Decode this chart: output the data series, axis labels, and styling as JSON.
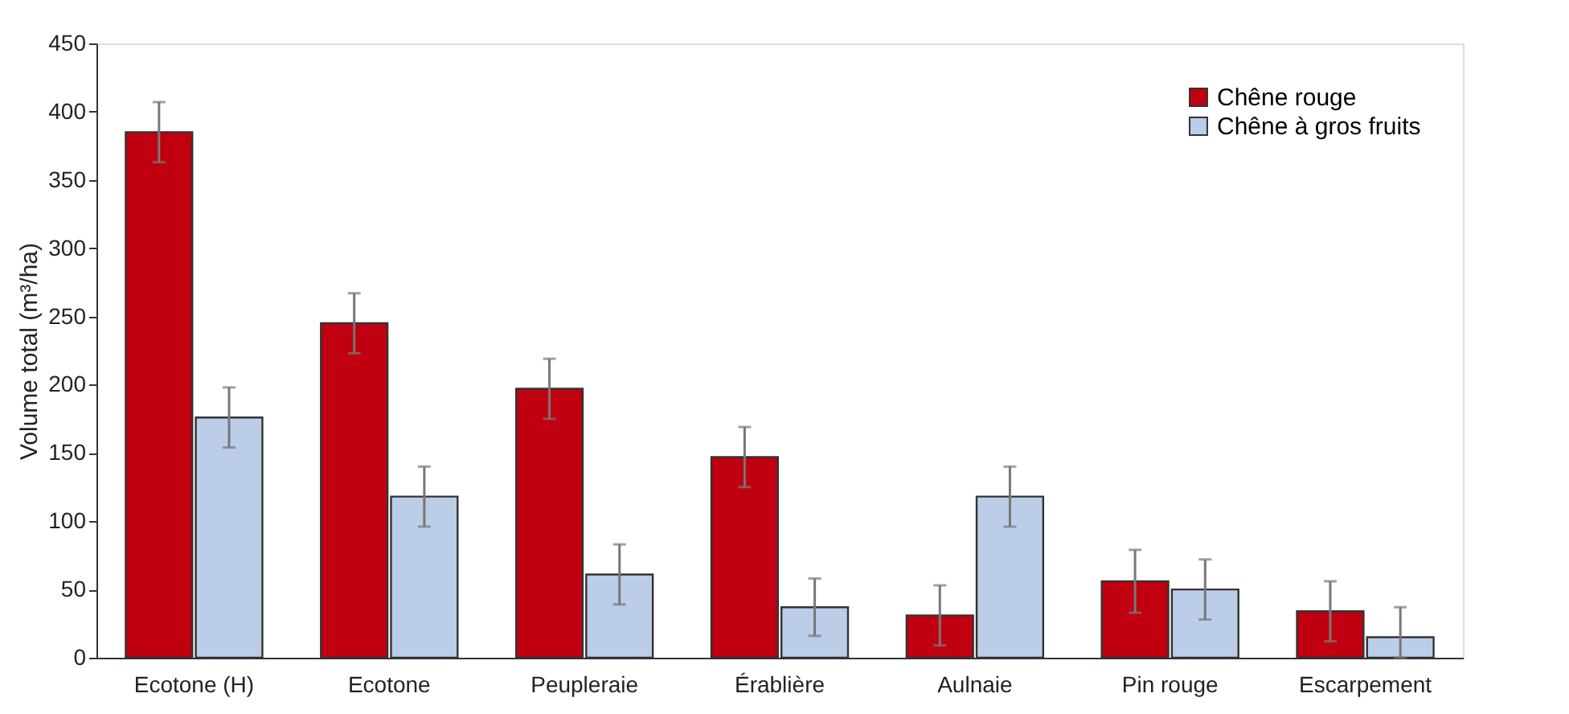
{
  "chart_data": {
    "type": "bar",
    "ylabel": "Volume total (m³/ha)",
    "categories": [
      "Ecotone (H)",
      "Ecotone",
      "Peupleraie",
      "Érablière",
      "Aulnaie",
      "Pin rouge",
      "Escarpement"
    ],
    "series": [
      {
        "name": "Chêne rouge",
        "color": "#c00010",
        "values": [
          385,
          245,
          197,
          147,
          31,
          56,
          34
        ],
        "errors": [
          22,
          22,
          22,
          22,
          22,
          23,
          22
        ]
      },
      {
        "name": "Chêne à gros fruits",
        "color": "#bccde8",
        "values": [
          176,
          118,
          61,
          37,
          118,
          50,
          15
        ],
        "errors": [
          22,
          22,
          22,
          21,
          22,
          22,
          [
            0,
            37
          ]
        ]
      }
    ],
    "ylim": [
      0,
      450
    ],
    "yticks": [
      0,
      50,
      100,
      150,
      200,
      250,
      300,
      350,
      400,
      450
    ],
    "grid": false,
    "legend": "top right"
  }
}
